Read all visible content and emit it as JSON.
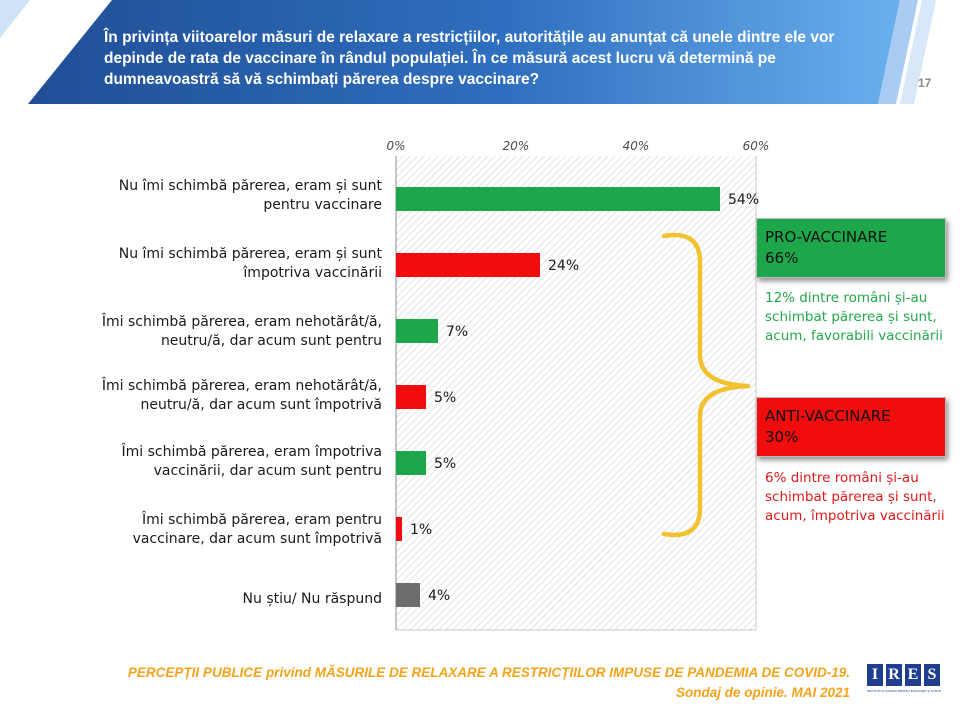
{
  "header": {
    "title": "În privința viitoarelor măsuri de relaxare a restricțiilor, autoritățile au anunțat că unele dintre ele vor depinde de rata de vaccinare în rândul populației. În ce măsură acest lucru vă determină pe dumneavoastră să vă schimbați părerea despre vaccinare?",
    "page_number": "17"
  },
  "colors": {
    "header_dark": "#1f4e95",
    "header_light": "#5aa5e8",
    "green": "#1ea64a",
    "red": "#f10d0d",
    "gray": "#6d6d6d",
    "bracket": "#f2c12e",
    "footer": "#f5a31a"
  },
  "chart_data": {
    "type": "bar",
    "orientation": "horizontal",
    "xlim": [
      0,
      60
    ],
    "ticks": [
      "0%",
      "20%",
      "40%",
      "60%"
    ],
    "tick_values": [
      0,
      20,
      40,
      60
    ],
    "categories": [
      "Nu îmi schimbă părerea, eram și sunt pentru vaccinare",
      "Nu îmi schimbă părerea, eram și sunt împotriva vaccinării",
      "Îmi schimbă părerea, eram nehotărât/ă, neutru/ă, dar acum sunt pentru",
      "Îmi schimbă părerea, eram nehotărât/ă, neutru/ă, dar acum sunt împotrivă",
      "Îmi schimbă părerea, eram împotriva vaccinării, dar acum sunt pentru",
      "Îmi schimbă părerea, eram pentru vaccinare, dar acum sunt împotrivă",
      "Nu știu/ Nu răspund"
    ],
    "values": [
      54,
      24,
      7,
      5,
      5,
      1,
      4
    ],
    "value_labels": [
      "54%",
      "24%",
      "7%",
      "5%",
      "5%",
      "1%",
      "4%"
    ],
    "bar_colors": [
      "#1ea64a",
      "#f10d0d",
      "#1ea64a",
      "#f10d0d",
      "#1ea64a",
      "#f10d0d",
      "#6d6d6d"
    ],
    "legend": "none",
    "grid": false
  },
  "labels": {
    "cat0_l1": "Nu îmi schimbă părerea, eram și sunt",
    "cat0_l2": "pentru vaccinare",
    "cat1_l1": "Nu îmi schimbă părerea, eram și sunt",
    "cat1_l2": "împotriva vaccinării",
    "cat2_l1": "Îmi schimbă părerea, eram nehotărât/ă,",
    "cat2_l2": "neutru/ă, dar acum sunt pentru",
    "cat3_l1": "Îmi schimbă părerea, eram nehotărât/ă,",
    "cat3_l2": "neutru/ă, dar acum sunt împotrivă",
    "cat4_l1": "Îmi schimbă părerea, eram împotriva",
    "cat4_l2": "vaccinării, dar acum sunt pentru",
    "cat5_l1": "Îmi schimbă părerea, eram pentru",
    "cat5_l2": "vaccinare, dar acum sunt împotrivă",
    "cat6_l1": "Nu știu/ Nu răspund"
  },
  "callouts": {
    "pro_title": "PRO-VACCINARE",
    "pro_value": "66%",
    "pro_note": "12% dintre români și-au schimbat părerea și sunt, acum, favorabili vaccinării",
    "anti_title": "ANTI-VACCINARE",
    "anti_value": "30%",
    "anti_note": "6% dintre români și-au schimbat părerea și sunt, acum, împotriva vaccinării"
  },
  "footer": {
    "line1": "PERCEPȚII PUBLICE privind MĂSURILE DE RELAXARE A RESTRICȚIILOR IMPUSE  DE PANDEMIA DE COVID-19.",
    "line2": "Sondaj de opinie. MAI 2021"
  },
  "logo": {
    "letters": [
      "I",
      "R",
      "E",
      "S"
    ],
    "subtitle": "INSTITUTUL ROMÂN PENTRU EVALUARE ȘI STRATEGIE"
  }
}
